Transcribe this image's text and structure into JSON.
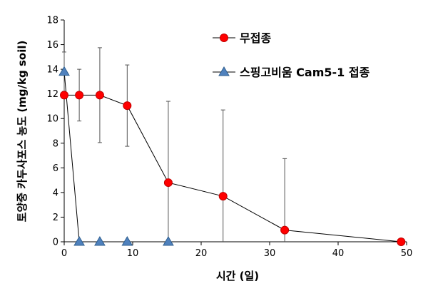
{
  "chart_data": {
    "type": "scatter",
    "xlabel": "시간 (일)",
    "ylabel": "토양중 카두사포스 농도 (mg/kg soil)",
    "xlim": [
      0,
      50
    ],
    "ylim": [
      0,
      18
    ],
    "x_ticks": [
      0,
      10,
      20,
      30,
      40,
      50
    ],
    "y_ticks": [
      0,
      2,
      4,
      6,
      8,
      10,
      12,
      14,
      16,
      18
    ],
    "grid": false,
    "legend_position": "top-right",
    "series": [
      {
        "name": "무접종",
        "marker": "circle",
        "color": "#ff0000",
        "x": [
          0,
          2.2,
          5.2,
          9.2,
          15.2,
          23.2,
          32.2,
          49.2
        ],
        "y": [
          11.9,
          11.9,
          11.9,
          11.05,
          4.8,
          3.7,
          0.95,
          0.0
        ],
        "error": [
          0.0,
          2.1,
          3.85,
          3.3,
          6.6,
          7.0,
          5.8,
          0.0
        ]
      },
      {
        "name": "스핑고비움 Cam5-1 접종",
        "marker": "triangle",
        "color": "#4f81bd",
        "x": [
          0,
          2.2,
          5.2,
          9.2,
          15.2
        ],
        "y": [
          13.8,
          0,
          0,
          0,
          0
        ],
        "error": [
          1.6,
          0,
          0,
          0,
          0
        ]
      }
    ]
  }
}
